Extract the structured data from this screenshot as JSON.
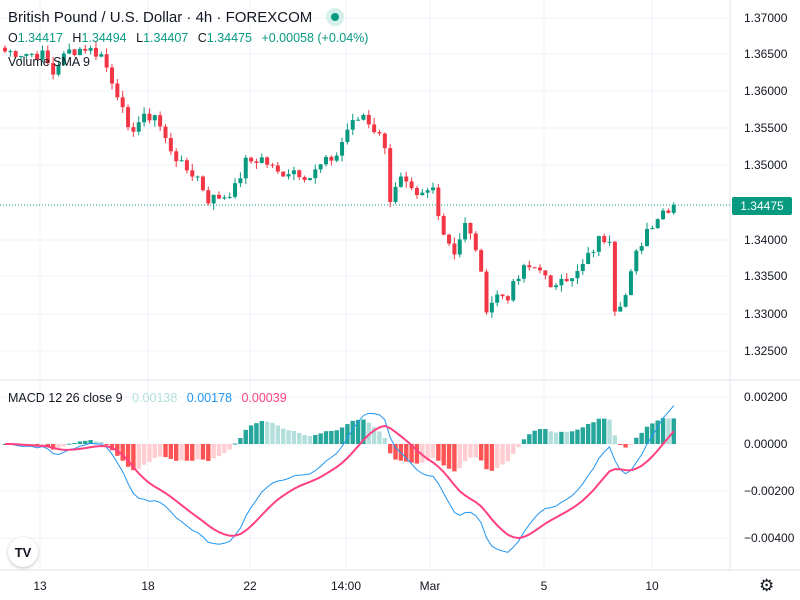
{
  "header": {
    "title": "British Pound / U.S. Dollar · 4h · FOREXCOM",
    "ohlc": {
      "o_label": "O",
      "o": "1.34417",
      "h_label": "H",
      "h": "1.34494",
      "l_label": "L",
      "l": "1.34407",
      "c_label": "C",
      "c": "1.34475",
      "change": "+0.00058 (+0.04%)"
    },
    "volume_label": "Volume SMA 9",
    "status_color": "#089981"
  },
  "macd_legend": {
    "label": "MACD 12 26 close 9",
    "hist": "0.00138",
    "macd": "0.00178",
    "signal": "0.00039"
  },
  "current_price": "1.34475",
  "logo": "TV",
  "chart_data": {
    "type": "candlestick",
    "symbol": "GBPUSD",
    "timeframe": "4h",
    "price_ticks": [
      "1.37000",
      "1.36500",
      "1.36000",
      "1.35500",
      "1.35000",
      "1.34000",
      "1.33500",
      "1.33000",
      "1.32500"
    ],
    "macd_ticks": [
      "0.00200",
      "0.00000",
      "−0.00200",
      "−0.00400"
    ],
    "x_ticks": [
      "13",
      "18",
      "22",
      "14:00",
      "Mar",
      "5",
      "10"
    ],
    "price_path_keypoints": [
      [
        0,
        1.3655
      ],
      [
        7,
        1.365
      ],
      [
        9,
        1.3625
      ],
      [
        10,
        1.364
      ],
      [
        12,
        1.3655
      ],
      [
        15,
        1.366
      ],
      [
        18,
        1.365
      ],
      [
        21,
        1.36
      ],
      [
        23,
        1.3545
      ],
      [
        25,
        1.356
      ],
      [
        28,
        1.357
      ],
      [
        30,
        1.3535
      ],
      [
        33,
        1.35
      ],
      [
        36,
        1.3485
      ],
      [
        38,
        1.3455
      ],
      [
        41,
        1.346
      ],
      [
        43,
        1.347
      ],
      [
        45,
        1.3505
      ],
      [
        48,
        1.351
      ],
      [
        51,
        1.349
      ],
      [
        54,
        1.3495
      ],
      [
        57,
        1.3485
      ],
      [
        59,
        1.35
      ],
      [
        62,
        1.3515
      ],
      [
        64,
        1.355
      ],
      [
        67,
        1.357
      ],
      [
        69,
        1.355
      ],
      [
        71,
        1.353
      ],
      [
        72,
        1.3455
      ],
      [
        74,
        1.348
      ],
      [
        77,
        1.3455
      ],
      [
        80,
        1.347
      ],
      [
        82,
        1.341
      ],
      [
        84,
        1.3385
      ],
      [
        86,
        1.342
      ],
      [
        88,
        1.339
      ],
      [
        90,
        1.331
      ],
      [
        92,
        1.3325
      ],
      [
        94,
        1.3325
      ],
      [
        97,
        1.336
      ],
      [
        100,
        1.3365
      ],
      [
        102,
        1.333
      ],
      [
        104,
        1.3355
      ],
      [
        106,
        1.3345
      ],
      [
        108,
        1.3365
      ],
      [
        111,
        1.34
      ],
      [
        113,
        1.3405
      ],
      [
        114,
        1.331
      ],
      [
        116,
        1.3325
      ],
      [
        118,
        1.338
      ],
      [
        120,
        1.3415
      ],
      [
        123,
        1.344
      ],
      [
        125,
        1.34475
      ]
    ],
    "colors": {
      "up": "#089981",
      "down": "#f23645",
      "macd": "#2196f3",
      "signal": "#ff4081",
      "hist_up_strong": "#26a69a",
      "hist_up_weak": "#b2dfdb",
      "hist_down_strong": "#ff5252",
      "hist_down_weak": "#ffcdd2"
    }
  }
}
